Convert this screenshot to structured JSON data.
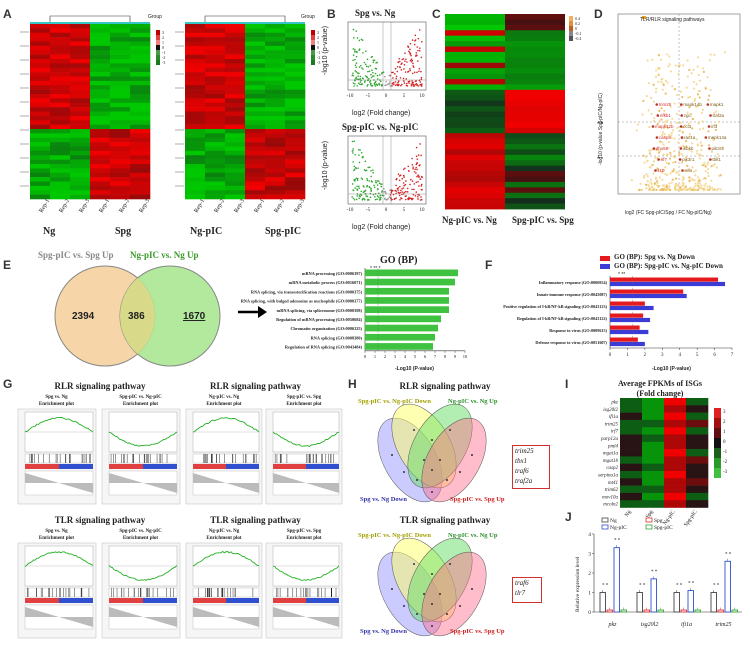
{
  "panels": {
    "A": "A",
    "B": "B",
    "C": "C",
    "D": "D",
    "E": "E",
    "F": "F",
    "G": "G",
    "H": "H",
    "I": "I",
    "J": "J"
  },
  "colors": {
    "red": "#e41a1c",
    "green": "#2fa52f",
    "darkred": "#8b0000",
    "darkgreen": "#1e6b1e",
    "orange": "#f6d6a8",
    "lime": "#a6e58b",
    "blue": "#3b3bd6"
  },
  "panelA": {
    "heat1_groups": [
      "Ng",
      "Spg"
    ],
    "heat2_groups": [
      "Ng-pIC",
      "Spg-pIC"
    ],
    "samples": [
      "Rep-1",
      "Rep-2",
      "Rep-3",
      "Rep-1",
      "Rep-2",
      "Rep-3"
    ],
    "legend_title": "Group",
    "legend_ticks": [
      "3",
      "2",
      "1",
      "0",
      "-1",
      "-2",
      "-3"
    ]
  },
  "panelB": {
    "top_title": "Spg vs. Ng",
    "bottom_title": "Spg-pIC vs. Ng-pIC",
    "xlabel": "log2 (Fold change)",
    "ylabel": "-log10 (p-value)",
    "xticks": [
      "-10",
      "-5",
      "0",
      "5",
      "10"
    ]
  },
  "panelC": {
    "xlabels": [
      "Ng-pIC vs. Ng",
      "Spg-pIC vs. Spg"
    ],
    "legend_ticks": [
      "0.4",
      "0.2",
      "0",
      "-0.2",
      "-0.4"
    ]
  },
  "panelD": {
    "legend": "TLR/RLR signaling pathways",
    "xlabel": "log2 (FC Spg-pIC/Spg / FC Ng-pIC/Ng)",
    "ylabel": "-log10 (p-value Spg-pIC/Ng-pIC)",
    "genes": [
      "trim25",
      "mapk14b",
      "mapk1",
      "nfkb1",
      "zgc:",
      "traf2a",
      "mapk12b",
      "ccl3",
      "irf3",
      "casp8",
      "rac1a",
      "mapk14a",
      "dhx58",
      "ikbkb",
      "pik3r3",
      "irf7",
      "pik3r1",
      "tbk1",
      "il1b",
      "rela"
    ],
    "markers": [
      "**",
      "*"
    ]
  },
  "panelE": {
    "venn_left_title": "Spg-pIC vs. Spg Up",
    "venn_right_title": "Ng-pIC vs. Ng Up",
    "left_only": "2394",
    "overlap": "386",
    "right_only": "1670",
    "go_title": "GO (BP)",
    "go_terms": [
      {
        "term": "mRNA processing (GO:0006397)",
        "value": 9.3
      },
      {
        "term": "mRNA metabolic process (GO:0016071)",
        "value": 9.0
      },
      {
        "term": "RNA splicing, via transesterification reactions (GO:0000375)",
        "value": 8.4
      },
      {
        "term": "RNA splicing, with bulged adenosine as nucleophile (GO:0000377)",
        "value": 8.4
      },
      {
        "term": "mRNA splicing, via spliceosome (GO:0000398)",
        "value": 8.4
      },
      {
        "term": "Regulation of mRNA processing (GO:0050684)",
        "value": 7.6
      },
      {
        "term": "Chromatin organization (GO:0006325)",
        "value": 7.3
      },
      {
        "term": "RNA splicing (GO:0008380)",
        "value": 7.0
      },
      {
        "term": "Regulation of RNA splicing (GO:0043484)",
        "value": 6.8
      }
    ],
    "go_xticks": [
      "0",
      "1",
      "2",
      "3",
      "4",
      "5",
      "6",
      "7",
      "8",
      "9",
      "10"
    ],
    "go_xlabel": "-Log10 (P-value)",
    "sig_marks": "* ** *"
  },
  "panelF": {
    "legend1": "GO (BP): Spg vs. Ng Down",
    "legend2": "GO (BP): Spg-pIC vs. Ng-pIC Down",
    "terms": [
      {
        "term": "Inflammatory response (GO:0006954)",
        "down": 6.2,
        "pic": 6.6
      },
      {
        "term": "Innate immune response (GO:0045087)",
        "down": 4.2,
        "pic": 4.4
      },
      {
        "term": "Positive regulation of I-kB/NF-kB signaling (GO:0043123)",
        "down": 2.0,
        "pic": 2.5
      },
      {
        "term": "Regulation of I-kB/NF-kB signaling (GO:0043122)",
        "down": 1.9,
        "pic": 2.3
      },
      {
        "term": "Response to virus (GO:0009615)",
        "down": 1.7,
        "pic": 2.2
      },
      {
        "term": "Defense response to virus (GO:0051607)",
        "down": 1.6,
        "pic": 2.0
      }
    ],
    "xticks": [
      "0",
      "1",
      "2",
      "3",
      "4",
      "5",
      "6",
      "7"
    ],
    "xlabel": "-Log10 (P-value)",
    "sig_marks": "* **"
  },
  "panelG": {
    "block1_title": "RLR signaling pathway",
    "block2_title": "RLR signaling pathway",
    "block3_title": "TLR signaling pathway",
    "block4_title": "TLR signaling pathway",
    "compare_a": "Spg vs. Ng",
    "compare_b": "Spg-pIC vs. Ng-pIC",
    "compare_c": "Ng-pIC vs. Ng",
    "compare_d": "Spg-pIC vs. Spg",
    "plot_title": "Enrichment plot"
  },
  "panelH": {
    "rlr_title": "RLR signaling pathway",
    "tlr_title": "TLR signaling pathway",
    "set_tl": "Spg-pIC vs. Ng-pIC Down",
    "set_tr": "Ng-pIC vs. Ng Up",
    "set_bl": "Spg vs. Ng Down",
    "set_br": "Spg-pIC vs. Spg Up",
    "rlr_genes": [
      "trim25",
      "tbx1",
      "traf6",
      "traf2a"
    ],
    "tlr_genes": [
      "traf6",
      "tlr7"
    ]
  },
  "panelI": {
    "title_line1": "Average FPKMs of ISGs",
    "title_line2": "(Fold change)",
    "genes": [
      "pkz",
      "isg20l2",
      "ifi1a",
      "trim25",
      "irf7",
      "parp12a",
      "pml4",
      "mgat1a",
      "mgat1b",
      "casp2",
      "serpina1a",
      "mt41",
      "trim62",
      "mov10a",
      "mcoln2"
    ],
    "columns": [
      "Ng",
      "Spg",
      "Ng-pIC",
      "Spg-pIC"
    ],
    "legend_ticks": [
      "3",
      "2",
      "1",
      "0",
      "-1",
      "-2",
      "-3"
    ]
  },
  "panelJ": {
    "legend": [
      "Ng",
      "Spg",
      "Ng-pIC",
      "Spg-pIC"
    ],
    "ylabel": "Relative expression level",
    "genes": [
      "pkz",
      "isg20l2",
      "ifi1a",
      "trim25"
    ],
    "yticks": [
      "0",
      "1",
      "2",
      "3",
      "4"
    ],
    "sig": "* *"
  },
  "chart_data": [
    {
      "type": "bar",
      "title": "GO (BP)",
      "xlabel": "-Log10 (P-value)",
      "categories": [
        "mRNA processing (GO:0006397)",
        "mRNA metabolic process (GO:0016071)",
        "RNA splicing, via transesterification reactions (GO:0000375)",
        "RNA splicing, with bulged adenosine as nucleophile (GO:0000377)",
        "mRNA splicing, via spliceosome (GO:0000398)",
        "Regulation of mRNA processing (GO:0050684)",
        "Chromatin organization (GO:0006325)",
        "RNA splicing (GO:0008380)",
        "Regulation of RNA splicing (GO:0043484)"
      ],
      "values": [
        9.3,
        9.0,
        8.4,
        8.4,
        8.4,
        7.6,
        7.3,
        7.0,
        6.8
      ],
      "xlim": [
        0,
        10
      ]
    },
    {
      "type": "bar",
      "title": "GO (BP) Down",
      "xlabel": "-Log10 (P-value)",
      "categories": [
        "Inflammatory response",
        "Innate immune response",
        "Positive regulation of I-kB/NF-kB signaling",
        "Regulation of I-kB/NF-kB signaling",
        "Response to virus",
        "Defense response to virus"
      ],
      "series": [
        {
          "name": "GO (BP): Spg vs. Ng Down",
          "values": [
            6.2,
            4.2,
            2.0,
            1.9,
            1.7,
            1.6
          ]
        },
        {
          "name": "GO (BP): Spg-pIC vs. Ng-pIC Down",
          "values": [
            6.6,
            4.4,
            2.5,
            2.3,
            2.2,
            2.0
          ]
        }
      ],
      "xlim": [
        0,
        7
      ]
    },
    {
      "type": "bar",
      "title": "Relative expression of ISGs",
      "ylabel": "Relative expression level",
      "categories": [
        "pkz",
        "isg20l2",
        "ifi1a",
        "trim25"
      ],
      "series": [
        {
          "name": "Ng",
          "values": [
            1.0,
            1.0,
            1.0,
            1.0
          ]
        },
        {
          "name": "Spg",
          "values": [
            0.1,
            0.1,
            0.1,
            0.1
          ]
        },
        {
          "name": "Ng-pIC",
          "values": [
            3.3,
            1.7,
            1.1,
            2.6
          ]
        },
        {
          "name": "Spg-pIC",
          "values": [
            0.1,
            0.1,
            0.1,
            0.1
          ]
        }
      ],
      "ylim": [
        0,
        4
      ]
    },
    {
      "type": "heatmap",
      "title": "Average FPKMs of ISGs (Fold change)",
      "rows": [
        "pkz",
        "isg20l2",
        "ifi1a",
        "trim25",
        "irf7",
        "parp12a",
        "pml4",
        "mgat1a",
        "mgat1b",
        "casp2",
        "serpina1a",
        "mt41",
        "trim62",
        "mov10a",
        "mcoln2"
      ],
      "columns": [
        "Ng",
        "Spg",
        "Ng-pIC",
        "Spg-pIC"
      ],
      "values": [
        [
          -1,
          -2,
          3,
          -1
        ],
        [
          -1,
          -2,
          2,
          0
        ],
        [
          0,
          -2,
          3,
          -1
        ],
        [
          -1,
          -1,
          2,
          1
        ],
        [
          -1,
          -2,
          3,
          -1
        ],
        [
          0,
          -1,
          2,
          0
        ],
        [
          0,
          -2,
          2,
          0
        ],
        [
          0,
          -2,
          3,
          -1
        ],
        [
          -1,
          -2,
          2,
          1
        ],
        [
          0,
          -1,
          2,
          0
        ],
        [
          -1,
          -2,
          3,
          0
        ],
        [
          0,
          -2,
          2,
          1
        ],
        [
          -1,
          -1,
          2,
          0
        ],
        [
          0,
          -2,
          3,
          -1
        ],
        [
          -1,
          -1,
          2,
          0
        ]
      ]
    }
  ]
}
